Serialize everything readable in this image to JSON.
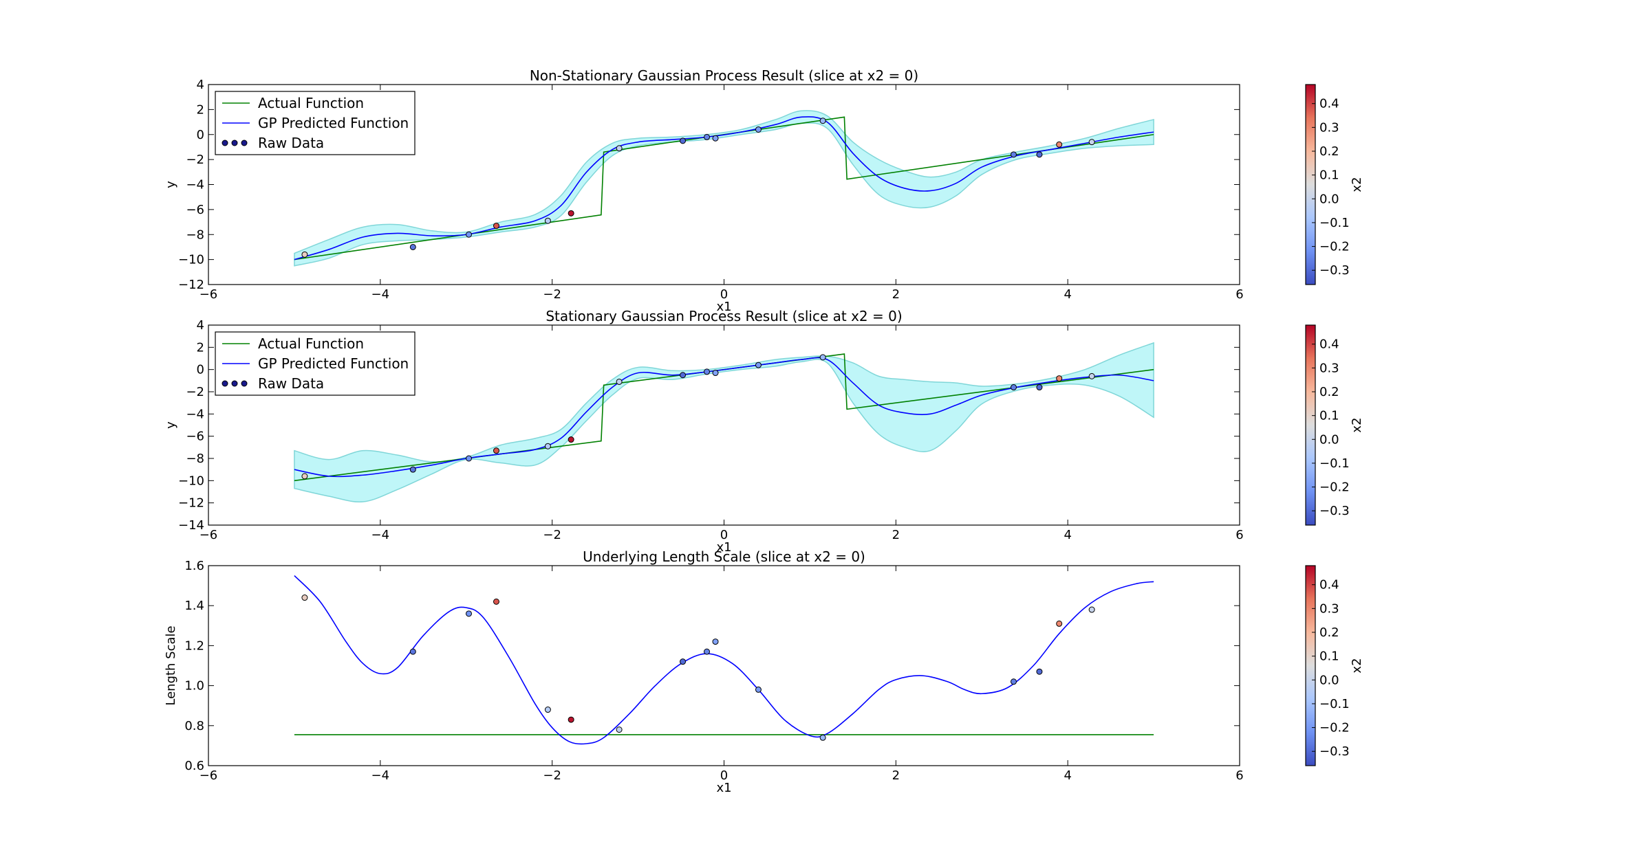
{
  "colors": {
    "actual": "#008000",
    "predicted": "#0000ff",
    "band_fill": "#bff6f8",
    "band_edge": "#7fd6d8",
    "marker_edge": "#000000",
    "axes": "#000000",
    "colormap": [
      "#3b4cc0",
      "#6f92f3",
      "#aac7fd",
      "#dddddd",
      "#f7b89c",
      "#e7745b",
      "#b40426"
    ]
  },
  "chart_data": [
    {
      "type": "line",
      "title": "Non-Stationary Gaussian Process Result (slice at x2 = 0)",
      "xlabel": "x1",
      "ylabel": "y",
      "xlim": [
        -6,
        6
      ],
      "ylim": [
        -12,
        4
      ],
      "xticks": [
        -6,
        -4,
        -2,
        0,
        2,
        4,
        6
      ],
      "yticks": [
        -12,
        -10,
        -8,
        -6,
        -4,
        -2,
        0,
        2,
        4
      ],
      "grid": false,
      "legend": {
        "position": "top-left",
        "entries": [
          {
            "label": "Actual Function",
            "kind": "line",
            "series": "actual"
          },
          {
            "label": "GP Predicted Function",
            "kind": "line",
            "series": "predicted"
          },
          {
            "label": "Raw Data",
            "kind": "points",
            "series": "raw"
          }
        ]
      },
      "series": [
        {
          "name": "Actual Function",
          "key": "actual",
          "x": [
            -5,
            -1.43,
            -1.4,
            1.4,
            1.43,
            5
          ],
          "y": [
            -10.0,
            -6.43,
            -1.4,
            1.4,
            -3.57,
            0.0
          ]
        },
        {
          "name": "GP Predicted Function",
          "key": "predicted",
          "x": [
            -5,
            -4.6,
            -4.2,
            -3.8,
            -3.4,
            -3.0,
            -2.6,
            -2.2,
            -1.9,
            -1.6,
            -1.3,
            -1.0,
            -0.6,
            -0.2,
            0.2,
            0.6,
            0.9,
            1.2,
            1.5,
            1.8,
            2.1,
            2.4,
            2.7,
            3.0,
            3.4,
            3.8,
            4.2,
            4.6,
            5.0
          ],
          "y": [
            -10.0,
            -9.2,
            -8.2,
            -7.9,
            -8.1,
            -8.0,
            -7.4,
            -6.9,
            -5.7,
            -3.0,
            -1.2,
            -0.6,
            -0.4,
            -0.2,
            0.2,
            0.8,
            1.4,
            1.0,
            -1.5,
            -3.4,
            -4.3,
            -4.5,
            -3.9,
            -2.6,
            -1.7,
            -1.2,
            -0.7,
            -0.2,
            0.2
          ]
        },
        {
          "name": "confidence band",
          "key": "band",
          "x": [
            -5,
            -4.6,
            -4.2,
            -3.8,
            -3.4,
            -3.0,
            -2.6,
            -2.2,
            -1.9,
            -1.6,
            -1.3,
            -1.0,
            -0.6,
            -0.2,
            0.2,
            0.6,
            0.9,
            1.2,
            1.5,
            1.8,
            2.1,
            2.4,
            2.7,
            3.0,
            3.4,
            3.8,
            4.2,
            4.6,
            5.0
          ],
          "upper": [
            -9.5,
            -8.4,
            -7.4,
            -7.2,
            -7.7,
            -7.8,
            -7.0,
            -6.4,
            -4.9,
            -2.2,
            -0.7,
            -0.3,
            -0.2,
            0.0,
            0.4,
            1.2,
            1.9,
            1.5,
            -0.6,
            -2.0,
            -2.9,
            -3.4,
            -3.0,
            -2.0,
            -1.4,
            -0.9,
            -0.3,
            0.5,
            1.2
          ],
          "lower": [
            -10.5,
            -9.9,
            -8.8,
            -8.5,
            -8.4,
            -8.2,
            -7.8,
            -7.4,
            -6.5,
            -3.8,
            -1.7,
            -0.9,
            -0.6,
            -0.4,
            0.0,
            0.4,
            0.9,
            0.5,
            -2.4,
            -4.8,
            -5.7,
            -5.8,
            -4.9,
            -3.2,
            -2.0,
            -1.5,
            -1.1,
            -0.9,
            -0.8
          ]
        }
      ],
      "points": {
        "x": [
          -4.88,
          -3.62,
          -2.97,
          -2.65,
          -2.05,
          -1.78,
          -1.22,
          -0.48,
          -0.2,
          -0.1,
          0.4,
          1.15,
          3.37,
          3.67,
          3.9,
          4.28
        ],
        "y": [
          -9.6,
          -9.0,
          -8.0,
          -7.3,
          -6.9,
          -6.3,
          -1.1,
          -0.5,
          -0.2,
          -0.3,
          0.4,
          1.1,
          -1.6,
          -1.6,
          -0.8,
          -0.6
        ],
        "c": [
          0.12,
          -0.28,
          -0.22,
          0.38,
          -0.05,
          0.46,
          -0.02,
          -0.3,
          -0.25,
          -0.18,
          -0.2,
          -0.12,
          -0.26,
          -0.3,
          0.3,
          0.0
        ]
      }
    },
    {
      "type": "line",
      "title": "Stationary Gaussian Process Result (slice at x2 = 0)",
      "xlabel": "x1",
      "ylabel": "y",
      "xlim": [
        -6,
        6
      ],
      "ylim": [
        -14,
        4
      ],
      "xticks": [
        -6,
        -4,
        -2,
        0,
        2,
        4,
        6
      ],
      "yticks": [
        -14,
        -12,
        -10,
        -8,
        -6,
        -4,
        -2,
        0,
        2,
        4
      ],
      "grid": false,
      "legend": {
        "position": "top-left",
        "entries": [
          {
            "label": "Actual Function",
            "kind": "line",
            "series": "actual"
          },
          {
            "label": "GP Predicted Function",
            "kind": "line",
            "series": "predicted"
          },
          {
            "label": "Raw Data",
            "kind": "points",
            "series": "raw"
          }
        ]
      },
      "series": [
        {
          "name": "Actual Function",
          "key": "actual",
          "x": [
            -5,
            -1.43,
            -1.4,
            1.4,
            1.43,
            5
          ],
          "y": [
            -10.0,
            -6.43,
            -1.4,
            1.4,
            -3.57,
            0.0
          ]
        },
        {
          "name": "GP Predicted Function",
          "key": "predicted",
          "x": [
            -5,
            -4.6,
            -4.2,
            -3.8,
            -3.4,
            -3.0,
            -2.6,
            -2.2,
            -1.9,
            -1.6,
            -1.3,
            -1.0,
            -0.6,
            -0.2,
            0.2,
            0.6,
            0.9,
            1.2,
            1.5,
            1.8,
            2.1,
            2.4,
            2.7,
            3.0,
            3.4,
            3.8,
            4.2,
            4.6,
            5.0
          ],
          "y": [
            -9.0,
            -9.6,
            -9.5,
            -9.1,
            -8.6,
            -8.0,
            -7.6,
            -7.2,
            -6.2,
            -3.8,
            -1.6,
            -0.3,
            -0.5,
            -0.2,
            0.2,
            0.6,
            0.9,
            0.9,
            -1.2,
            -3.2,
            -3.9,
            -4.0,
            -3.2,
            -2.3,
            -1.6,
            -1.1,
            -0.7,
            -0.5,
            -1.0
          ]
        },
        {
          "name": "confidence band",
          "key": "band",
          "x": [
            -5,
            -4.6,
            -4.2,
            -3.8,
            -3.4,
            -3.0,
            -2.6,
            -2.2,
            -1.9,
            -1.6,
            -1.3,
            -1.0,
            -0.6,
            -0.2,
            0.2,
            0.6,
            0.9,
            1.2,
            1.5,
            1.8,
            2.1,
            2.4,
            2.7,
            3.0,
            3.4,
            3.8,
            4.2,
            4.6,
            5.0
          ],
          "upper": [
            -7.3,
            -8.1,
            -7.3,
            -7.7,
            -8.3,
            -7.9,
            -6.8,
            -6.2,
            -5.4,
            -3.0,
            -0.9,
            0.2,
            -0.1,
            0.0,
            0.4,
            0.9,
            1.1,
            1.2,
            0.6,
            -0.6,
            -0.9,
            -1.1,
            -1.2,
            -1.5,
            -1.3,
            -0.8,
            0.0,
            1.3,
            2.4
          ]
        },
        {
          "name": "lower band",
          "key": "band-lower",
          "x": [
            -5,
            -4.6,
            -4.2,
            -3.8,
            -3.4,
            -3.0,
            -2.6,
            -2.2,
            -1.9,
            -1.6,
            -1.3,
            -1.0,
            -0.6,
            -0.2,
            0.2,
            0.6,
            0.9,
            1.2,
            1.5,
            1.8,
            2.1,
            2.4,
            2.7,
            3.0,
            3.4,
            3.8,
            4.2,
            4.6,
            5.0
          ],
          "y": [
            -10.7,
            -11.4,
            -11.9,
            -10.8,
            -9.4,
            -8.1,
            -8.4,
            -8.6,
            -7.0,
            -4.6,
            -2.3,
            -0.8,
            -0.9,
            -0.4,
            0.0,
            0.3,
            0.7,
            0.6,
            -3.0,
            -5.8,
            -7.0,
            -7.3,
            -5.5,
            -3.1,
            -1.9,
            -1.4,
            -1.4,
            -2.4,
            -4.3
          ]
        }
      ],
      "points": {
        "x": [
          -4.88,
          -3.62,
          -2.97,
          -2.65,
          -2.05,
          -1.78,
          -1.22,
          -0.48,
          -0.2,
          -0.1,
          0.4,
          1.15,
          3.37,
          3.67,
          3.9,
          4.28
        ],
        "y": [
          -9.6,
          -9.0,
          -8.0,
          -7.3,
          -6.9,
          -6.3,
          -1.1,
          -0.5,
          -0.2,
          -0.3,
          0.4,
          1.1,
          -1.6,
          -1.6,
          -0.8,
          -0.6
        ],
        "c": [
          0.12,
          -0.28,
          -0.22,
          0.38,
          -0.05,
          0.46,
          -0.02,
          -0.3,
          -0.25,
          -0.18,
          -0.2,
          -0.12,
          -0.26,
          -0.3,
          0.3,
          0.0
        ]
      }
    },
    {
      "type": "line",
      "title": "Underlying Length Scale (slice at x2 = 0)",
      "xlabel": "x1",
      "ylabel": "Length Scale",
      "xlim": [
        -6,
        6
      ],
      "ylim": [
        0.6,
        1.6
      ],
      "xticks": [
        -6,
        -4,
        -2,
        0,
        2,
        4,
        6
      ],
      "yticks": [
        0.6,
        0.8,
        1.0,
        1.2,
        1.4,
        1.6
      ],
      "grid": false,
      "series": [
        {
          "key": "predicted",
          "x": [
            -5,
            -4.7,
            -4.4,
            -4.2,
            -4.0,
            -3.8,
            -3.5,
            -3.2,
            -3.0,
            -2.8,
            -2.5,
            -2.2,
            -2.0,
            -1.8,
            -1.6,
            -1.4,
            -1.1,
            -0.8,
            -0.5,
            -0.2,
            0.1,
            0.4,
            0.7,
            1.0,
            1.2,
            1.5,
            1.8,
            2.0,
            2.3,
            2.6,
            2.8,
            3.0,
            3.3,
            3.6,
            3.9,
            4.2,
            4.5,
            4.8,
            5.0
          ],
          "y": [
            1.55,
            1.42,
            1.22,
            1.11,
            1.06,
            1.09,
            1.25,
            1.37,
            1.39,
            1.34,
            1.14,
            0.91,
            0.79,
            0.72,
            0.71,
            0.74,
            0.86,
            1.0,
            1.11,
            1.16,
            1.11,
            0.98,
            0.83,
            0.75,
            0.76,
            0.86,
            0.98,
            1.03,
            1.05,
            1.02,
            0.98,
            0.96,
            0.99,
            1.1,
            1.26,
            1.39,
            1.47,
            1.51,
            1.52
          ]
        },
        {
          "key": "actual",
          "x": [
            -5,
            5
          ],
          "y": [
            0.755,
            0.755
          ]
        }
      ],
      "points": {
        "x": [
          -4.88,
          -3.62,
          -2.97,
          -2.65,
          -2.05,
          -1.78,
          -1.22,
          -0.48,
          -0.2,
          -0.1,
          0.4,
          1.15,
          3.37,
          3.67,
          3.9,
          4.28
        ],
        "y": [
          1.44,
          1.17,
          1.36,
          1.42,
          0.88,
          0.83,
          0.78,
          1.12,
          1.17,
          1.22,
          0.98,
          0.74,
          1.02,
          1.07,
          1.31,
          1.38
        ],
        "c": [
          0.12,
          -0.28,
          -0.22,
          0.38,
          -0.05,
          0.46,
          -0.02,
          -0.3,
          -0.25,
          -0.18,
          -0.2,
          -0.12,
          -0.26,
          -0.3,
          0.3,
          0.0
        ]
      }
    }
  ],
  "colorbars": [
    {
      "label": "x2",
      "range": [
        -0.36,
        0.48
      ],
      "ticks": [
        "0.4",
        "0.3",
        "0.2",
        "0.1",
        "0.0",
        "−0.1",
        "−0.2",
        "−0.3"
      ],
      "tick_values": [
        0.4,
        0.3,
        0.2,
        0.1,
        0.0,
        -0.1,
        -0.2,
        -0.3
      ]
    },
    {
      "label": "x2",
      "range": [
        -0.36,
        0.48
      ],
      "ticks": [
        "0.4",
        "0.3",
        "0.2",
        "0.1",
        "0.0",
        "−0.1",
        "−0.2",
        "−0.3"
      ],
      "tick_values": [
        0.4,
        0.3,
        0.2,
        0.1,
        0.0,
        -0.1,
        -0.2,
        -0.3
      ]
    },
    {
      "label": "x2",
      "range": [
        -0.36,
        0.48
      ],
      "ticks": [
        "0.4",
        "0.3",
        "0.2",
        "0.1",
        "0.0",
        "−0.1",
        "−0.2",
        "−0.3"
      ],
      "tick_values": [
        0.4,
        0.3,
        0.2,
        0.1,
        0.0,
        -0.1,
        -0.2,
        -0.3
      ]
    }
  ]
}
